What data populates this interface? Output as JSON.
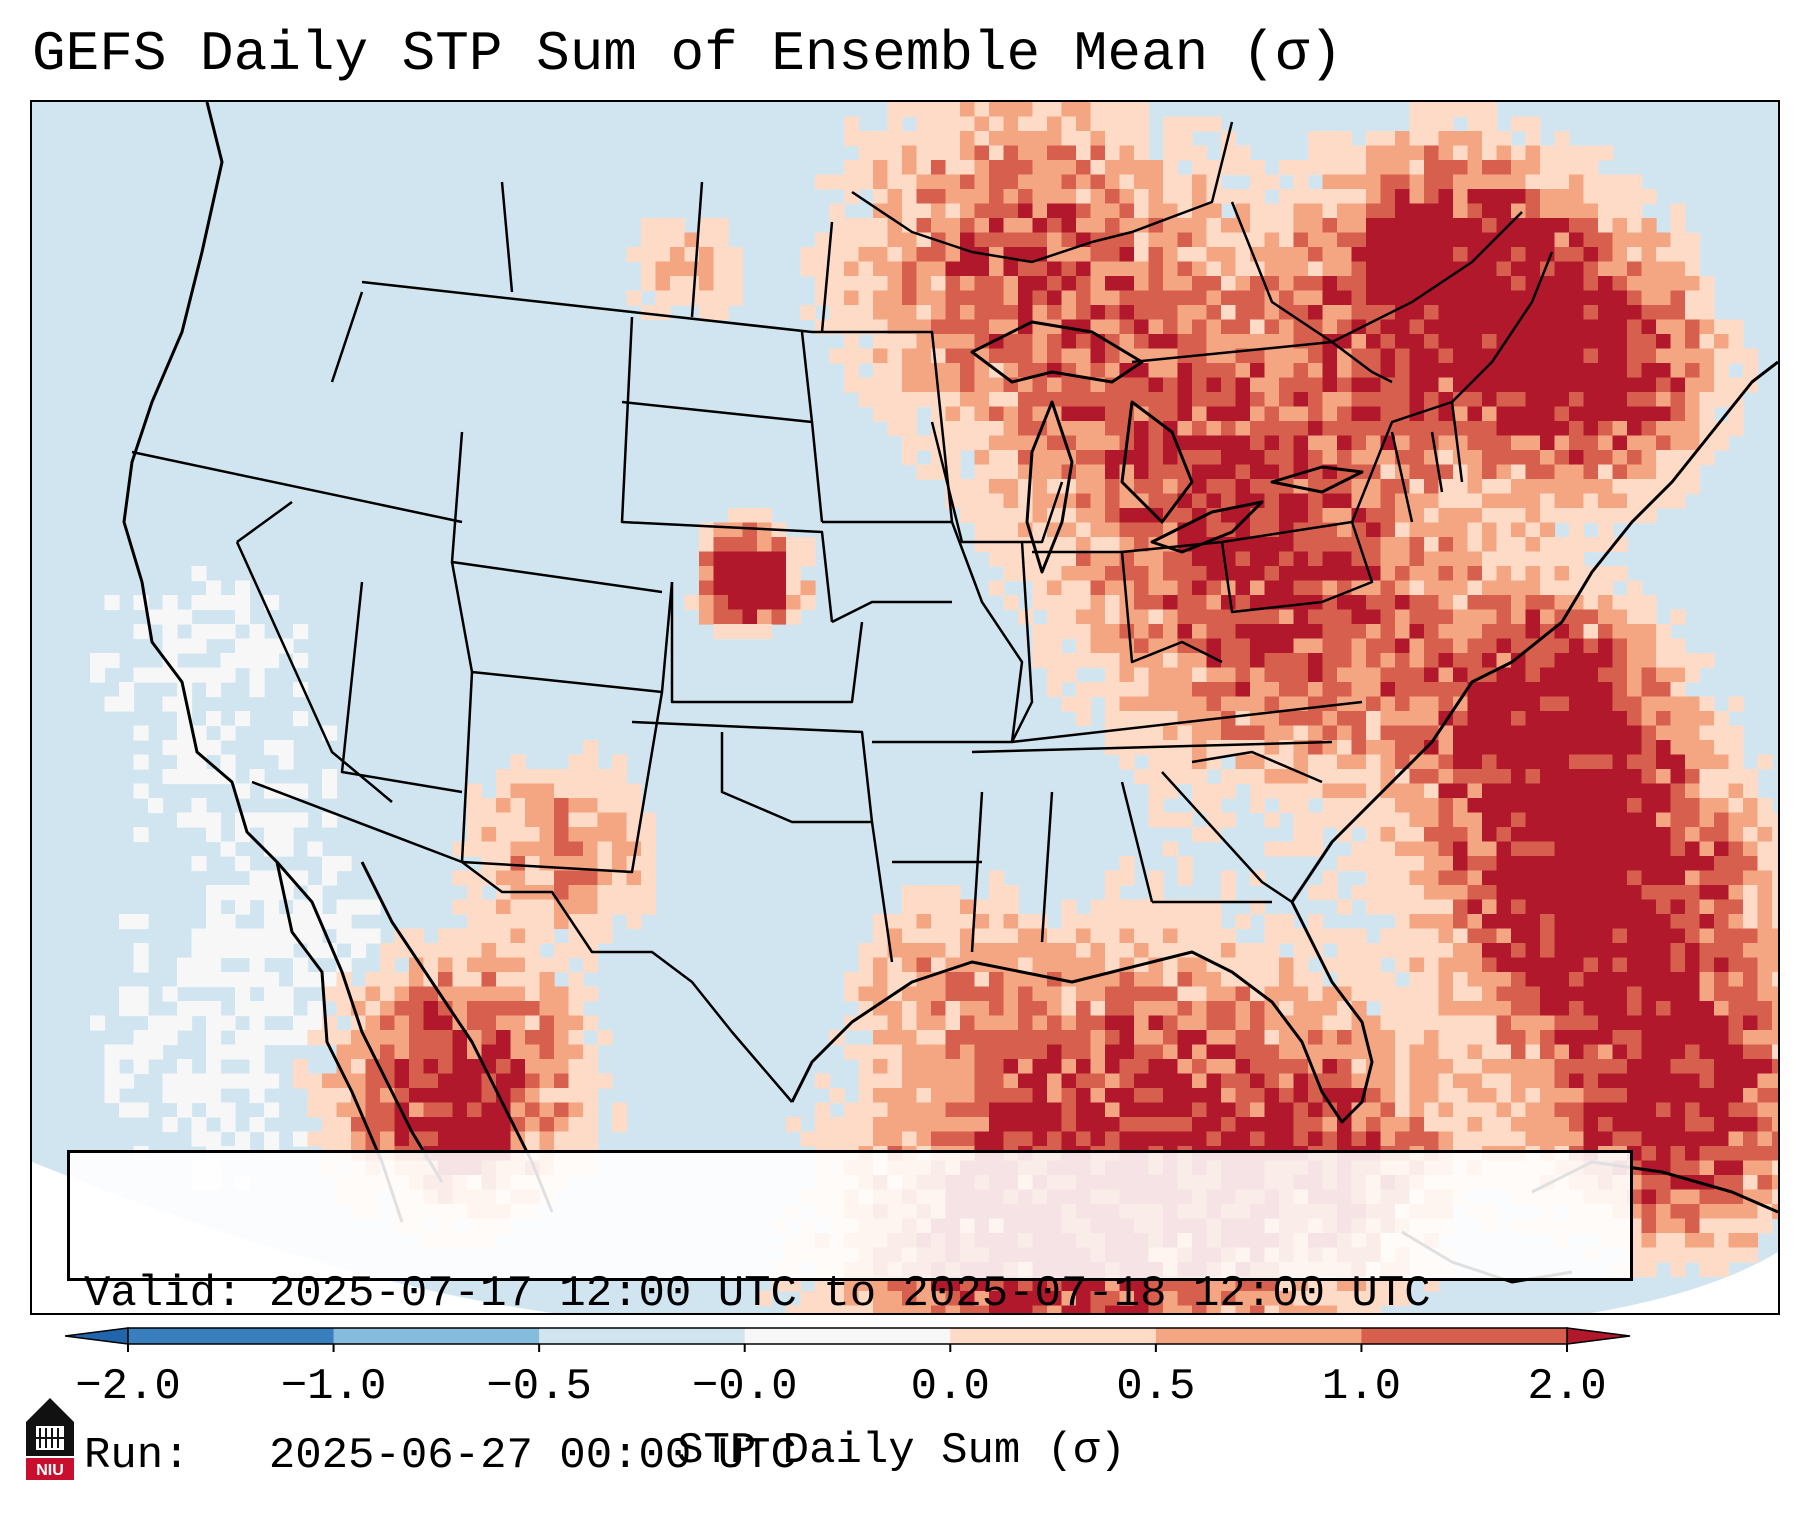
{
  "title": "GEFS Daily STP Sum of Ensemble Mean (σ)",
  "info": {
    "valid_label": "Valid:",
    "valid_value": "2025-07-17 12:00 UTC to 2025-07-18 12:00 UTC",
    "run_label": "Run:",
    "run_value": "2025-06-27 00:00 UTC"
  },
  "colorbar": {
    "label": "STP Daily Sum (σ)",
    "tick_labels": [
      "−2.0",
      "−1.0",
      "−0.5",
      "−0.0",
      "0.0",
      "0.5",
      "1.0",
      "2.0"
    ],
    "bin_colors": [
      "#3a7fbd",
      "#86bcdb",
      "#d1e5f0",
      "#f7f7f7",
      "#fddbc7",
      "#f4a582",
      "#d6604d"
    ],
    "under_color": "#2166ac",
    "over_color": "#b2182b"
  },
  "map": {
    "background_color": "#d1e5f0",
    "outside_color": "#ffffff",
    "region": "Contiguous United States, northern Mexico, Gulf of Mexico, western Atlantic"
  },
  "logo": {
    "text": "NIU"
  }
}
